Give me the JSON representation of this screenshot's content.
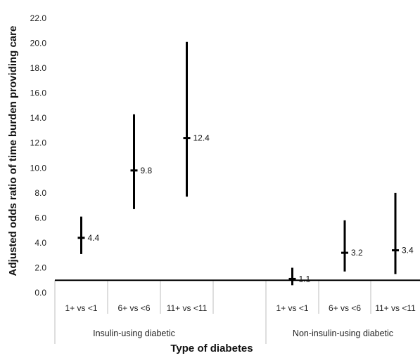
{
  "chart_data": {
    "type": "error-bar",
    "xlabel": "Type of diabetes",
    "ylabel": "Adjusted odds ratio of time burden providing care",
    "ylim": [
      0,
      22
    ],
    "ytick_labels": [
      "0.0",
      "2.0",
      "4.0",
      "6.0",
      "8.0",
      "10.0",
      "12.0",
      "14.0",
      "16.0",
      "18.0",
      "20.0",
      "22.0"
    ],
    "reference_line": 1.0,
    "grid": false,
    "groups": [
      {
        "name": "Insulin-using diabetic",
        "points": [
          {
            "category": "1+ vs <1",
            "value": 4.4,
            "value_label": "4.4",
            "lower": 3.1,
            "upper": 6.1
          },
          {
            "category": "6+ vs <6",
            "value": 9.8,
            "value_label": "9.8",
            "lower": 6.7,
            "upper": 14.3
          },
          {
            "category": "11+ vs <11",
            "value": 12.4,
            "value_label": "12.4",
            "lower": 7.7,
            "upper": 20.1
          }
        ]
      },
      {
        "name": "Non-insulin-using diabetic",
        "points": [
          {
            "category": "1+ vs <1",
            "value": 1.1,
            "value_label": "1.1",
            "lower": 0.6,
            "upper": 2.0
          },
          {
            "category": "6+ vs <6",
            "value": 3.2,
            "value_label": "3.2",
            "lower": 1.7,
            "upper": 5.8
          },
          {
            "category": "11+ vs <11",
            "value": 3.4,
            "value_label": "3.4",
            "lower": 1.5,
            "upper": 8.0
          }
        ]
      }
    ]
  }
}
